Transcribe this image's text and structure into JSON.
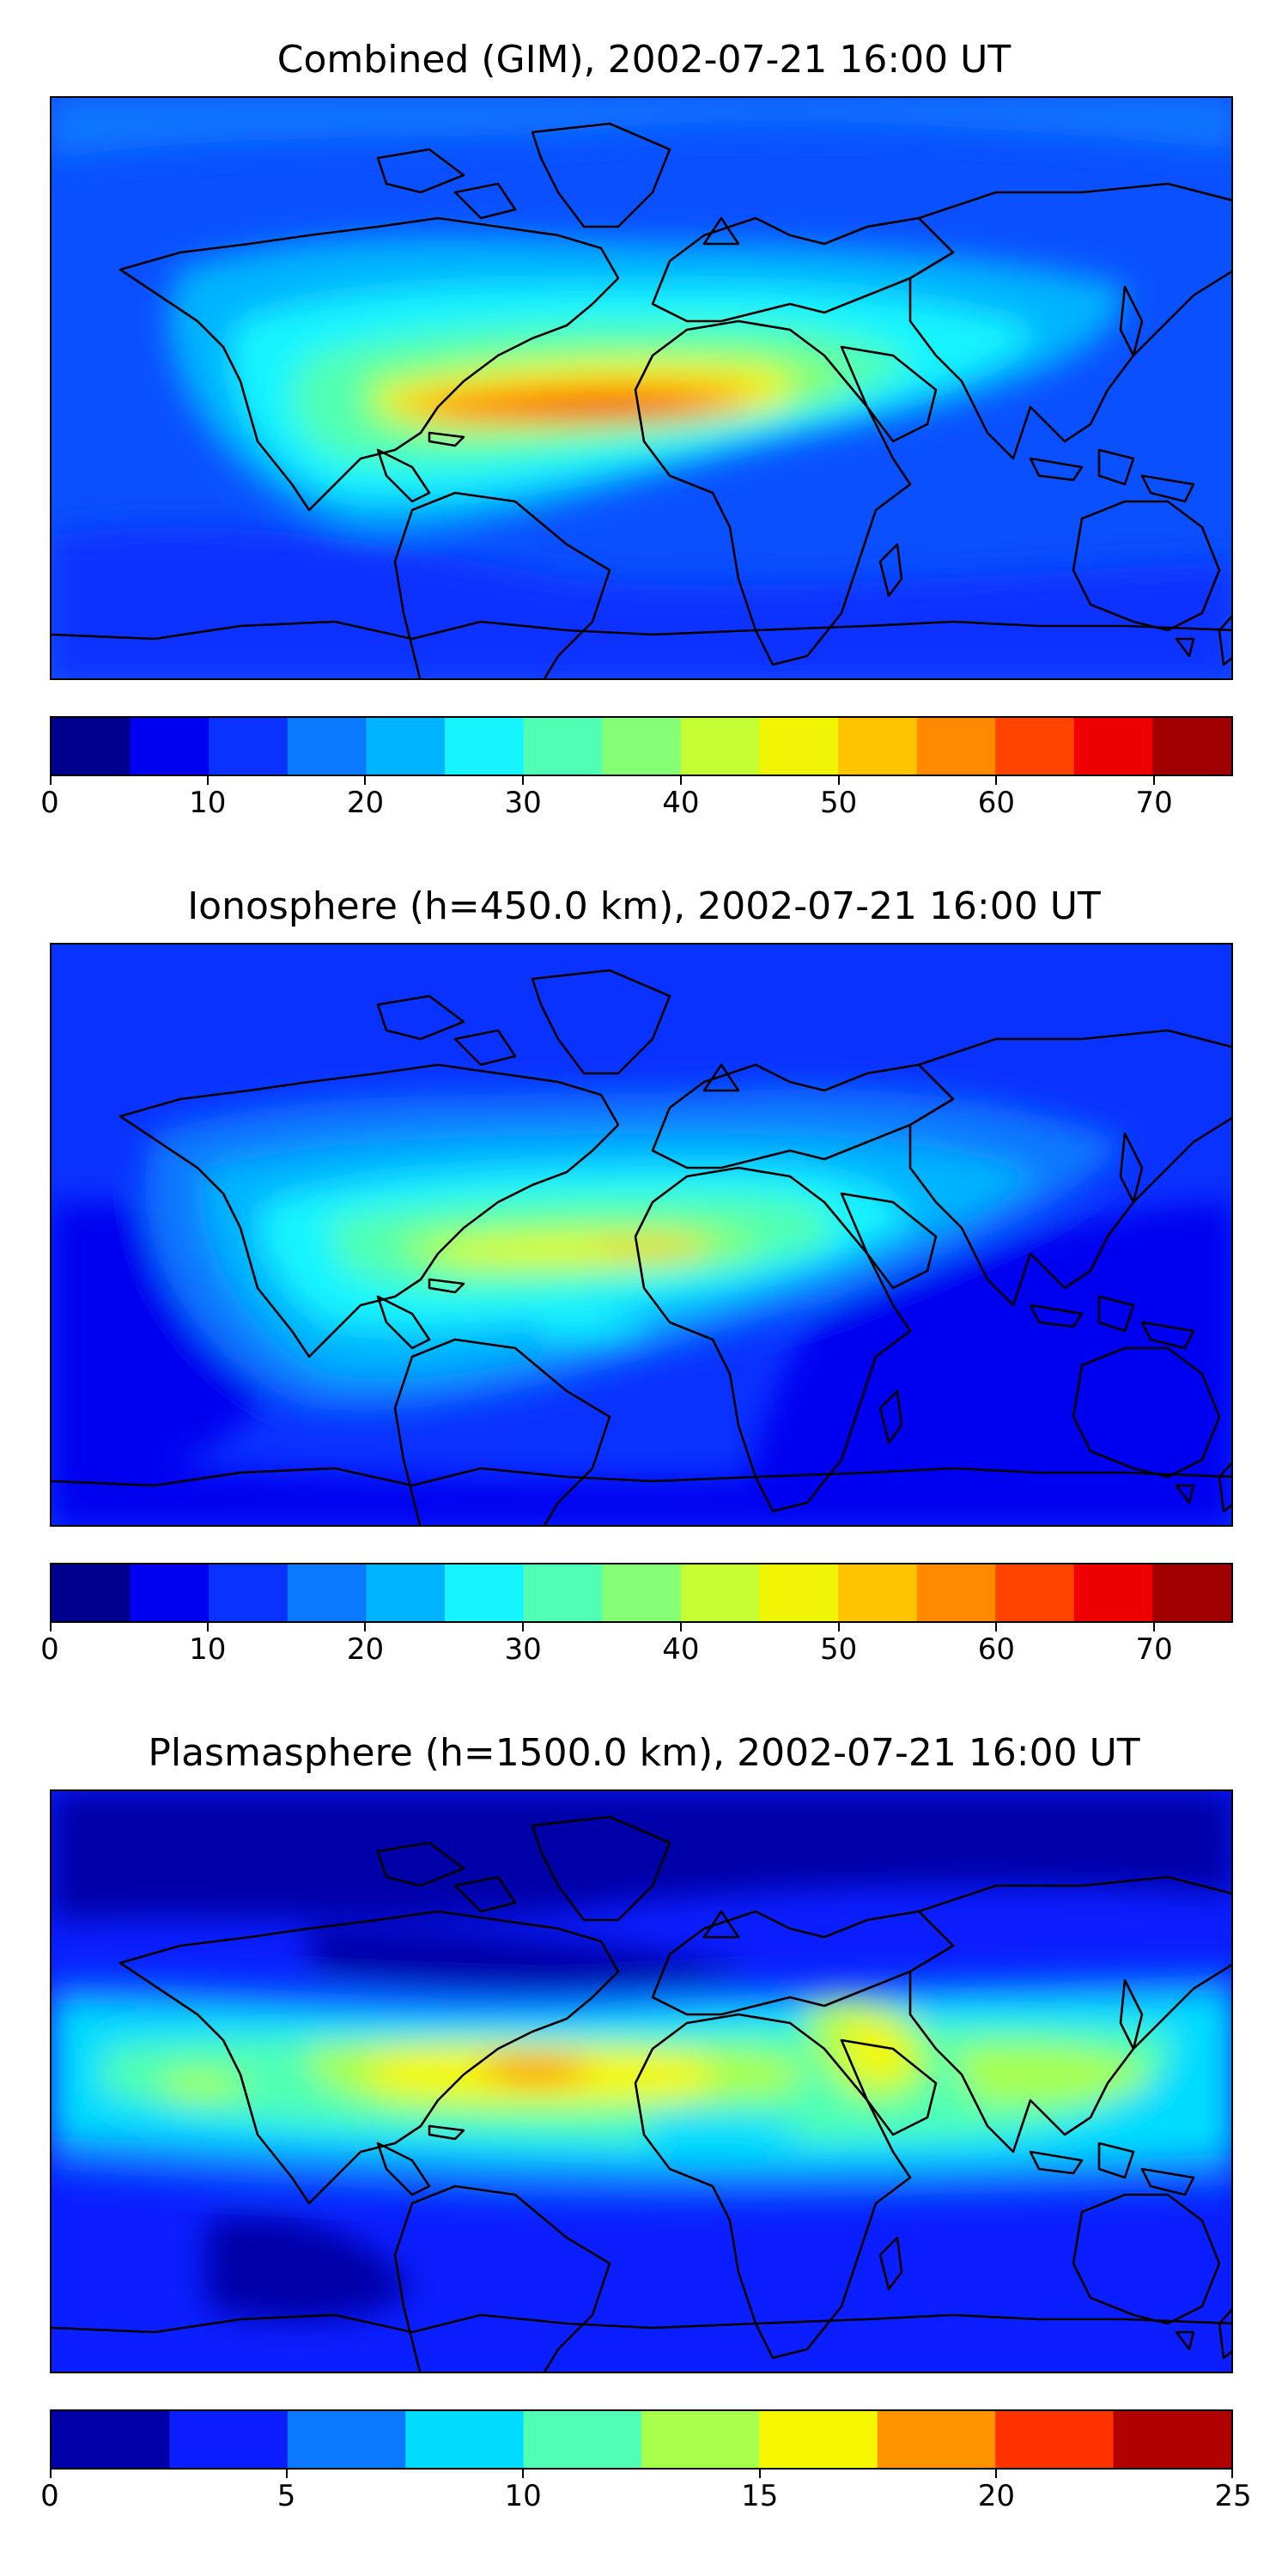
{
  "panels": [
    {
      "title": "Combined (GIM), 2002-07-21 16:00 UT",
      "colorbar": {
        "bounds": [
          0,
          5,
          10,
          15,
          20,
          25,
          30,
          35,
          40,
          45,
          50,
          55,
          60,
          65,
          70,
          75
        ],
        "colors": [
          "#00008f",
          "#0000f0",
          "#0a32ff",
          "#0a78ff",
          "#00b4ff",
          "#16f4ff",
          "#50ffb4",
          "#86ff76",
          "#c4ff33",
          "#f0f505",
          "#ffc400",
          "#ff8a00",
          "#ff4400",
          "#ee0000",
          "#a00000"
        ],
        "ticks": [
          "0",
          "10",
          "20",
          "30",
          "40",
          "50",
          "60",
          "70"
        ],
        "tick_values": [
          0,
          10,
          20,
          30,
          40,
          50,
          60,
          70
        ]
      }
    },
    {
      "title": "Ionosphere  (h=450.0 km), 2002-07-21 16:00 UT",
      "colorbar": {
        "bounds": [
          0,
          5,
          10,
          15,
          20,
          25,
          30,
          35,
          40,
          45,
          50,
          55,
          60,
          65,
          70,
          75
        ],
        "colors": [
          "#00008f",
          "#0000f0",
          "#0a32ff",
          "#0a78ff",
          "#00b4ff",
          "#16f4ff",
          "#50ffb4",
          "#86ff76",
          "#c4ff33",
          "#f0f505",
          "#ffc400",
          "#ff8a00",
          "#ff4400",
          "#ee0000",
          "#a00000"
        ],
        "ticks": [
          "0",
          "10",
          "20",
          "30",
          "40",
          "50",
          "60",
          "70"
        ],
        "tick_values": [
          0,
          10,
          20,
          30,
          40,
          50,
          60,
          70
        ]
      }
    },
    {
      "title": "Plasmasphere (h=1500.0 km), 2002-07-21 16:00 UT",
      "colorbar": {
        "bounds": [
          0,
          2.5,
          5,
          7.5,
          10,
          12.5,
          15,
          17.5,
          20,
          22.5,
          25
        ],
        "colors": [
          "#0000a8",
          "#0a1eff",
          "#0a78ff",
          "#00dcff",
          "#50ffb4",
          "#a8ff4c",
          "#f7f700",
          "#ff9400",
          "#ff3300",
          "#b00000"
        ],
        "ticks": [
          "0",
          "5",
          "10",
          "15",
          "20",
          "25"
        ],
        "tick_values": [
          0,
          5,
          10,
          15,
          20,
          25
        ]
      }
    }
  ]
}
